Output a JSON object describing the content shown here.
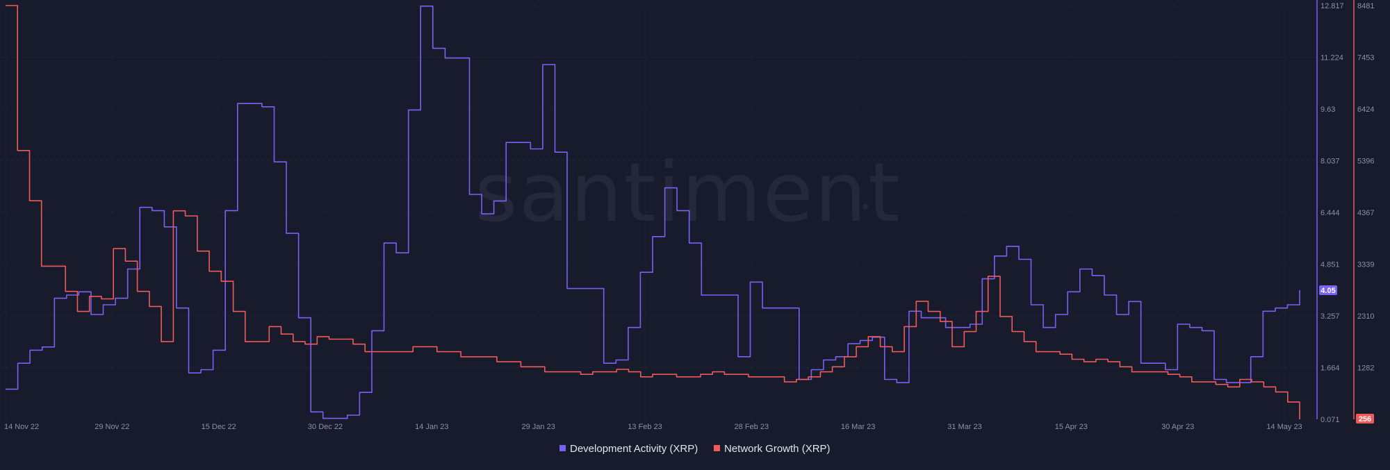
{
  "watermark": "santiment",
  "chart_data": {
    "type": "line",
    "x_ticks": [
      "14 Nov 22",
      "29 Nov 22",
      "15 Dec 22",
      "30 Dec 22",
      "14 Jan 23",
      "29 Jan 23",
      "13 Feb 23",
      "28 Feb 23",
      "16 Mar 23",
      "31 Mar 23",
      "15 Apr 23",
      "30 Apr 23",
      "14 May 23"
    ],
    "left_axis": {
      "ticks": [
        "12.817",
        "11.224",
        "9.63",
        "8.037",
        "6.444",
        "4.851",
        "3.257",
        "1.664",
        "0.071"
      ],
      "range": [
        0.071,
        12.817
      ],
      "color": "#7c5ff5"
    },
    "right_axis": {
      "ticks": [
        "8481",
        "7453",
        "6424",
        "5396",
        "4367",
        "3339",
        "2310",
        "1282",
        "256"
      ],
      "range": [
        256,
        8481
      ],
      "color": "#f05a5a"
    },
    "series": [
      {
        "name": "Development Activity (XRP)",
        "axis": "left",
        "color": "#7c5ff5",
        "last_value": "4.05",
        "values": [
          1.0,
          1.8,
          2.2,
          2.3,
          3.8,
          3.9,
          4.0,
          3.3,
          3.6,
          3.8,
          4.7,
          6.6,
          6.5,
          6.0,
          3.5,
          1.5,
          1.6,
          2.2,
          6.5,
          9.8,
          9.8,
          9.7,
          8.0,
          5.8,
          3.2,
          0.3,
          0.1,
          0.1,
          0.2,
          0.9,
          2.8,
          5.5,
          5.2,
          9.6,
          12.8,
          11.5,
          11.2,
          11.2,
          7.0,
          6.4,
          6.8,
          8.6,
          8.6,
          8.4,
          11.0,
          8.3,
          4.1,
          4.1,
          4.1,
          1.8,
          1.9,
          2.9,
          4.6,
          5.7,
          7.2,
          6.5,
          5.5,
          3.9,
          3.9,
          3.9,
          2.0,
          4.3,
          3.5,
          3.5,
          3.5,
          1.3,
          1.6,
          1.9,
          2.0,
          2.4,
          2.5,
          2.6,
          1.3,
          1.2,
          3.4,
          3.2,
          3.2,
          2.9,
          2.9,
          3.0,
          4.4,
          5.1,
          5.4,
          5.0,
          3.6,
          2.9,
          3.3,
          4.0,
          4.7,
          4.5,
          3.9,
          3.3,
          3.7,
          1.8,
          1.8,
          1.6,
          3.0,
          2.9,
          2.8,
          1.3,
          1.2,
          1.2,
          2.0,
          3.4,
          3.5,
          3.6,
          4.05
        ]
      },
      {
        "name": "Network Growth (XRP)",
        "axis": "right",
        "color": "#f05a5a",
        "last_value": "256",
        "values": [
          8481,
          5600,
          4600,
          3300,
          3300,
          2800,
          2400,
          2700,
          2650,
          3650,
          3400,
          2800,
          2500,
          1800,
          4400,
          4300,
          3600,
          3200,
          3000,
          2400,
          1800,
          1800,
          2100,
          1950,
          1800,
          1750,
          1900,
          1850,
          1850,
          1750,
          1600,
          1600,
          1600,
          1600,
          1700,
          1700,
          1600,
          1600,
          1500,
          1500,
          1500,
          1400,
          1400,
          1300,
          1300,
          1200,
          1200,
          1200,
          1150,
          1200,
          1200,
          1250,
          1200,
          1100,
          1150,
          1150,
          1100,
          1100,
          1150,
          1200,
          1150,
          1150,
          1100,
          1100,
          1100,
          1000,
          1050,
          1100,
          1200,
          1300,
          1500,
          1700,
          1900,
          1700,
          1600,
          2100,
          2600,
          2400,
          2200,
          1700,
          2000,
          2400,
          3100,
          2300,
          2000,
          1800,
          1600,
          1600,
          1550,
          1450,
          1400,
          1450,
          1400,
          1300,
          1200,
          1200,
          1200,
          1150,
          1100,
          1000,
          1000,
          950,
          900,
          1050,
          1000,
          900,
          800,
          600,
          256
        ]
      }
    ],
    "legend_position": "bottom-center",
    "grid": true
  }
}
